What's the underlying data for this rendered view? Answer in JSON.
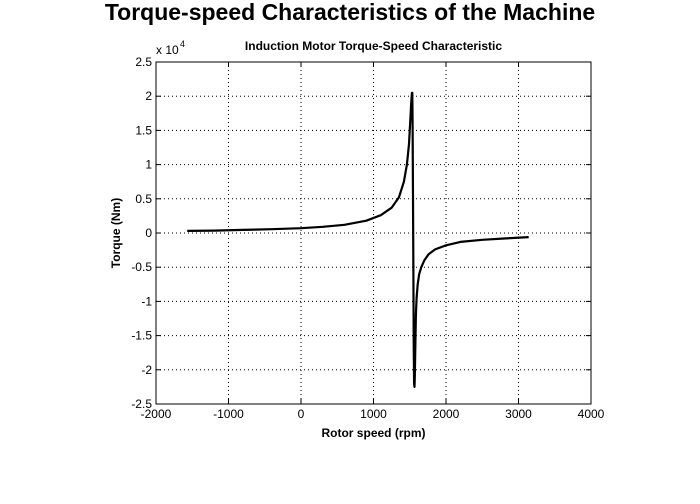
{
  "page": {
    "title": "Torque-speed Characteristics of the Machine"
  },
  "chart_data": {
    "type": "line",
    "title": "Induction Motor Torque-Speed Characteristic",
    "xlabel": "Rotor speed (rpm)",
    "ylabel": "Torque (Nm)",
    "y_exponent_label": "x 10",
    "y_exponent": "4",
    "xlim": [
      -2000,
      4000
    ],
    "ylim": [
      -25000,
      25000
    ],
    "x_ticks": [
      -2000,
      -1000,
      0,
      1000,
      2000,
      3000,
      4000
    ],
    "x_tick_labels": [
      "-2000",
      "-1000",
      "0",
      "1000",
      "2000",
      "3000",
      "4000"
    ],
    "y_ticks": [
      -25000,
      -20000,
      -15000,
      -10000,
      -5000,
      0,
      5000,
      10000,
      15000,
      20000,
      25000
    ],
    "y_tick_labels": [
      "-2.5",
      "-2",
      "-1.5",
      "-1",
      "-0.5",
      "0",
      "0.5",
      "1",
      "1.5",
      "2",
      "2.5"
    ],
    "grid": true,
    "series": [
      {
        "color": "#000000",
        "x": [
          -1570,
          -1200,
          -800,
          -400,
          0,
          300,
          600,
          900,
          1100,
          1250,
          1350,
          1420,
          1460,
          1490,
          1510,
          1520,
          1530,
          1535,
          1540,
          1545,
          1550,
          1555,
          1560,
          1565,
          1570,
          1578,
          1585,
          1595,
          1610,
          1630,
          1660,
          1700,
          1760,
          1850,
          2000,
          2200,
          2500,
          2800,
          3140
        ],
        "y": [
          300,
          350,
          450,
          550,
          700,
          900,
          1200,
          1800,
          2600,
          3700,
          5200,
          7500,
          10000,
          13000,
          17000,
          19000,
          20500,
          20500,
          16000,
          5000,
          -6000,
          -16000,
          -22000,
          -22500,
          -21000,
          -16000,
          -12000,
          -9500,
          -7500,
          -6000,
          -5000,
          -4000,
          -3100,
          -2400,
          -1800,
          -1300,
          -1000,
          -800,
          -600
        ]
      }
    ]
  }
}
